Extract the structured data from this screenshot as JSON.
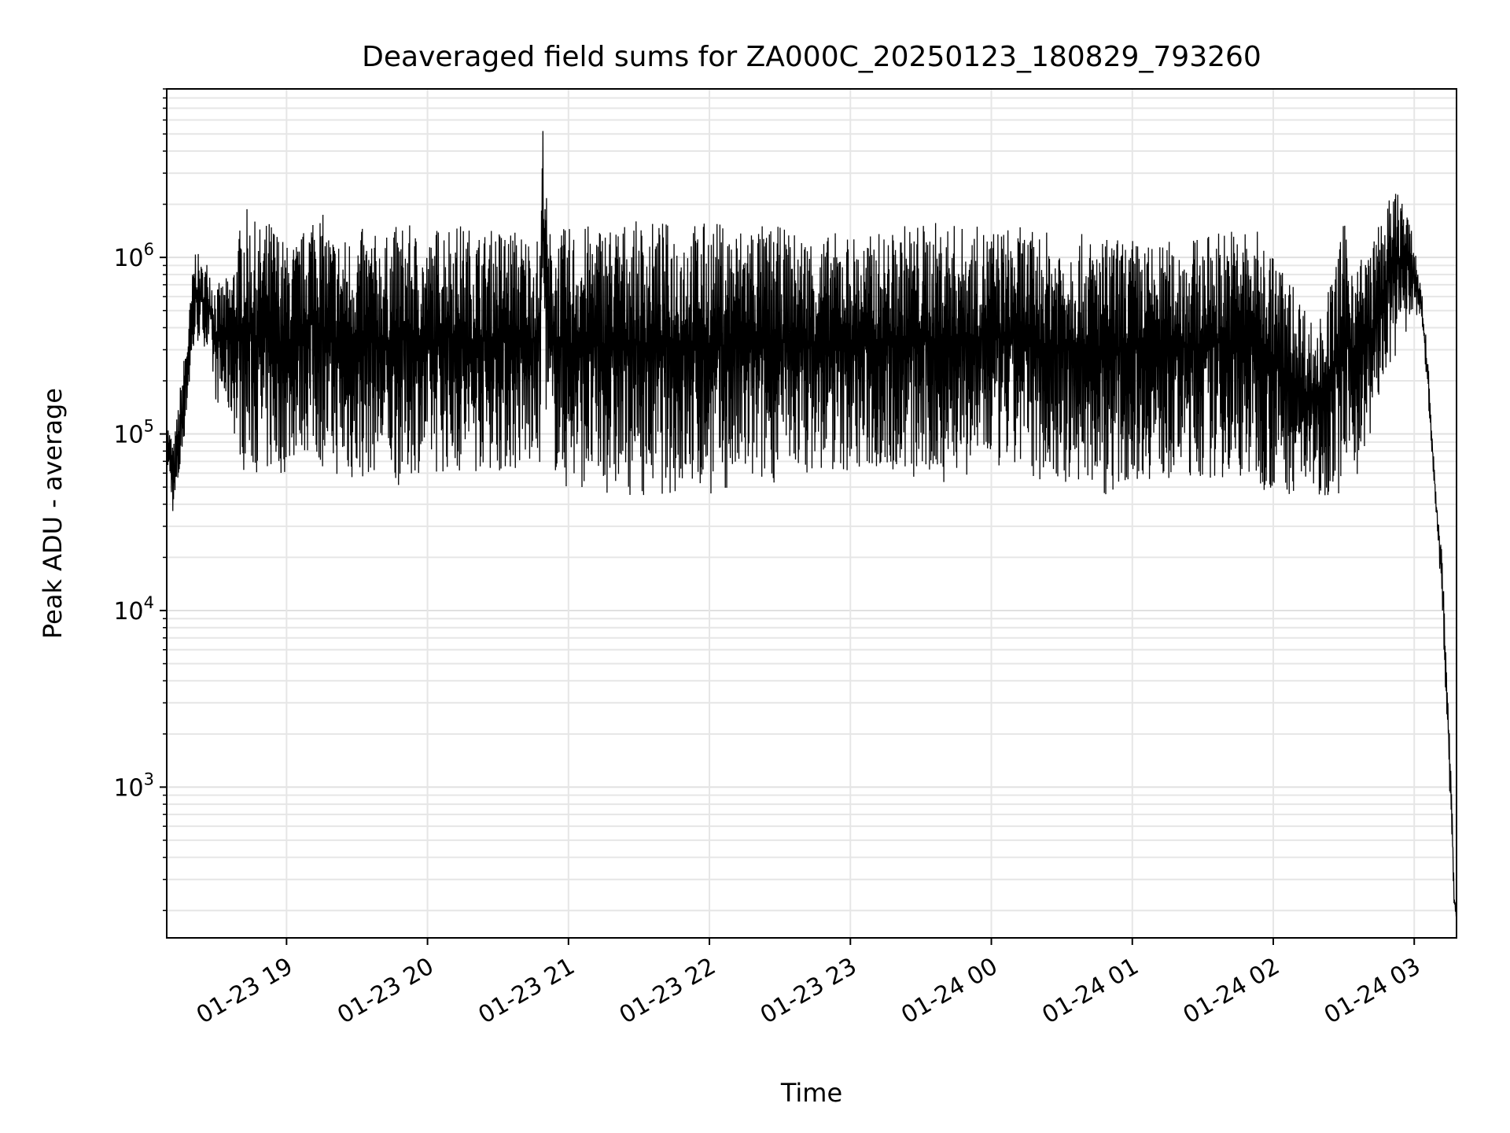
{
  "chart_data": {
    "type": "line",
    "title": "Deaveraged field sums for ZA000C_20250123_180829_793260",
    "xlabel": "Time",
    "ylabel": "Peak ADU - average",
    "yscale": "log",
    "ylim": [
      140,
      9000000
    ],
    "xlim": [
      "2025-01-23 18:09",
      "2025-01-24 03:18"
    ],
    "x_ticks": [
      {
        "x": "2025-01-23 19:00",
        "label": "01-23 19"
      },
      {
        "x": "2025-01-23 20:00",
        "label": "01-23 20"
      },
      {
        "x": "2025-01-23 21:00",
        "label": "01-23 21"
      },
      {
        "x": "2025-01-23 22:00",
        "label": "01-23 22"
      },
      {
        "x": "2025-01-23 23:00",
        "label": "01-23 23"
      },
      {
        "x": "2025-01-24 00:00",
        "label": "01-24 00"
      },
      {
        "x": "2025-01-24 01:00",
        "label": "01-24 01"
      },
      {
        "x": "2025-01-24 02:00",
        "label": "01-24 02"
      },
      {
        "x": "2025-01-24 03:00",
        "label": "01-24 03"
      }
    ],
    "y_ticks": [
      {
        "value": 1000,
        "base": "10",
        "exp": "3"
      },
      {
        "value": 10000,
        "base": "10",
        "exp": "4"
      },
      {
        "value": 100000,
        "base": "10",
        "exp": "5"
      },
      {
        "value": 1000000,
        "base": "10",
        "exp": "6"
      }
    ],
    "grid": true,
    "series_color": "#000000",
    "series": [
      {
        "x": [
          "2025-01-23 18:09",
          "2025-01-23 18:12",
          "2025-01-23 18:15",
          "2025-01-23 18:18",
          "2025-01-23 18:21",
          "2025-01-23 18:24",
          "2025-01-23 18:27",
          "2025-01-23 18:30",
          "2025-01-23 18:36",
          "2025-01-23 18:42",
          "2025-01-23 18:48",
          "2025-01-23 18:54",
          "2025-01-23 19:00",
          "2025-01-23 19:06",
          "2025-01-23 19:12",
          "2025-01-23 19:18",
          "2025-01-23 19:24",
          "2025-01-23 19:30",
          "2025-01-23 19:36",
          "2025-01-23 19:42",
          "2025-01-23 19:48",
          "2025-01-23 19:54",
          "2025-01-23 20:00",
          "2025-01-23 20:06",
          "2025-01-23 20:12",
          "2025-01-23 20:18",
          "2025-01-23 20:24",
          "2025-01-23 20:30",
          "2025-01-23 20:36",
          "2025-01-23 20:42",
          "2025-01-23 20:48",
          "2025-01-23 20:49",
          "2025-01-23 20:50",
          "2025-01-23 20:51",
          "2025-01-23 20:54",
          "2025-01-23 21:00",
          "2025-01-23 21:06",
          "2025-01-23 21:12",
          "2025-01-23 21:18",
          "2025-01-23 21:24",
          "2025-01-23 21:30",
          "2025-01-23 21:36",
          "2025-01-23 21:42",
          "2025-01-23 21:48",
          "2025-01-23 21:54",
          "2025-01-23 22:00",
          "2025-01-23 22:06",
          "2025-01-23 22:12",
          "2025-01-23 22:18",
          "2025-01-23 22:24",
          "2025-01-23 22:30",
          "2025-01-23 22:36",
          "2025-01-23 22:42",
          "2025-01-23 22:48",
          "2025-01-23 22:54",
          "2025-01-23 23:00",
          "2025-01-23 23:06",
          "2025-01-23 23:12",
          "2025-01-23 23:18",
          "2025-01-23 23:24",
          "2025-01-23 23:30",
          "2025-01-23 23:36",
          "2025-01-23 23:42",
          "2025-01-23 23:48",
          "2025-01-23 23:54",
          "2025-01-24 00:00",
          "2025-01-24 00:06",
          "2025-01-24 00:12",
          "2025-01-24 00:18",
          "2025-01-24 00:24",
          "2025-01-24 00:30",
          "2025-01-24 00:36",
          "2025-01-24 00:42",
          "2025-01-24 00:48",
          "2025-01-24 00:54",
          "2025-01-24 01:00",
          "2025-01-24 01:06",
          "2025-01-24 01:12",
          "2025-01-24 01:18",
          "2025-01-24 01:24",
          "2025-01-24 01:30",
          "2025-01-24 01:36",
          "2025-01-24 01:42",
          "2025-01-24 01:48",
          "2025-01-24 01:54",
          "2025-01-24 02:00",
          "2025-01-24 02:06",
          "2025-01-24 02:12",
          "2025-01-24 02:18",
          "2025-01-24 02:24",
          "2025-01-24 02:30",
          "2025-01-24 02:36",
          "2025-01-24 02:42",
          "2025-01-24 02:48",
          "2025-01-24 02:54",
          "2025-01-24 03:00",
          "2025-01-24 03:03",
          "2025-01-24 03:06",
          "2025-01-24 03:09",
          "2025-01-24 03:12",
          "2025-01-24 03:14",
          "2025-01-24 03:16",
          "2025-01-24 03:17",
          "2025-01-24 03:18"
        ],
        "y_high": [
          120000,
          90000,
          200000,
          400000,
          1200000,
          900000,
          1000000,
          700000,
          800000,
          2000000,
          1500000,
          1700000,
          1200000,
          1300000,
          2200000,
          1500000,
          1300000,
          1500000,
          1400000,
          1300000,
          1600000,
          1500000,
          1200000,
          1700000,
          1600000,
          1500000,
          1400000,
          1500000,
          1500000,
          1400000,
          1300000,
          6000000,
          5000000,
          1500000,
          1400000,
          1500000,
          1500000,
          1600000,
          1600000,
          1600000,
          1600000,
          1600000,
          1600000,
          1600000,
          1600000,
          1600000,
          1600000,
          1500000,
          1700000,
          1500000,
          1500000,
          1400000,
          1400000,
          1300000,
          1400000,
          1400000,
          1300000,
          1400000,
          1400000,
          1600000,
          1600000,
          1600000,
          1600000,
          1500000,
          1500000,
          1500000,
          1500000,
          1500000,
          1400000,
          1400000,
          1400000,
          1400000,
          1300000,
          1300000,
          1300000,
          1300000,
          1200000,
          1200000,
          1300000,
          1300000,
          1300000,
          1500000,
          1500000,
          1500000,
          1400000,
          1100000,
          800000,
          600000,
          400000,
          700000,
          1600000,
          1000000,
          1200000,
          2000000,
          2700000,
          1200000,
          700000,
          250000,
          50000,
          20000,
          4000,
          1000,
          250,
          210
        ],
        "y_low": [
          70000,
          32000,
          60000,
          150000,
          300000,
          350000,
          250000,
          150000,
          120000,
          60000,
          60000,
          55000,
          60000,
          80000,
          70000,
          60000,
          55000,
          50000,
          60000,
          60000,
          50000,
          60000,
          60000,
          60000,
          60000,
          55000,
          65000,
          60000,
          60000,
          60000,
          65000,
          600000,
          200000,
          90000,
          60000,
          45000,
          50000,
          45000,
          45000,
          45000,
          45000,
          45000,
          45000,
          45000,
          45000,
          45000,
          45000,
          50000,
          48000,
          50000,
          55000,
          60000,
          60000,
          60000,
          60000,
          60000,
          60000,
          60000,
          60000,
          55000,
          50000,
          50000,
          55000,
          55000,
          60000,
          60000,
          60000,
          60000,
          55000,
          55000,
          50000,
          50000,
          50000,
          45000,
          50000,
          55000,
          55000,
          55000,
          55000,
          55000,
          55000,
          55000,
          55000,
          55000,
          50000,
          45000,
          45000,
          45000,
          45000,
          45000,
          45000,
          60000,
          100000,
          200000,
          300000,
          500000,
          400000,
          150000,
          40000,
          10000,
          2000,
          500,
          200,
          180
        ]
      }
    ]
  }
}
